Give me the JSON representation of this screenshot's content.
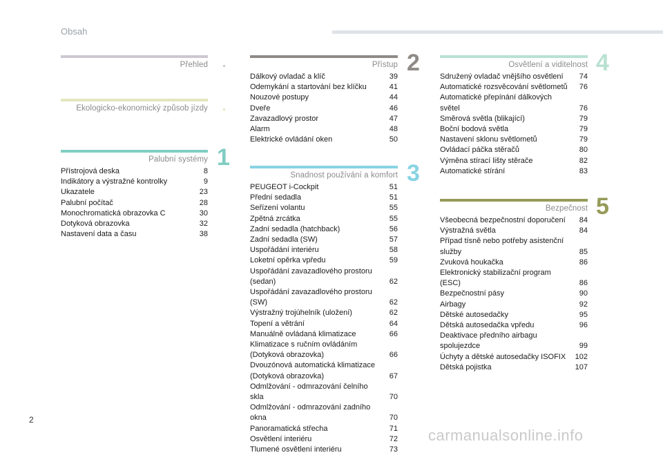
{
  "header": {
    "title": "Obsah"
  },
  "page_number": "2",
  "watermark": "carmanualsonline.info",
  "sections": {
    "prehled": {
      "title": "Přehled",
      "number": "",
      "color": "#cdc7d2",
      "entries": []
    },
    "eko": {
      "title": "Ekologicko-ekonomický způsob jízdy",
      "number": "",
      "color": "#e3e6bf",
      "entries": []
    },
    "palubni": {
      "title": "Palubní systémy",
      "number": "1",
      "color": "#7fcdc2",
      "entries": [
        {
          "t": "Přístrojová deska",
          "p": "8"
        },
        {
          "t": "Indikátory a výstražné kontrolky",
          "p": "9"
        },
        {
          "t": "Ukazatele",
          "p": "23"
        },
        {
          "t": "Palubní počítač",
          "p": "28"
        },
        {
          "t": "Monochromatická obrazovka C",
          "p": "30"
        },
        {
          "t": "Dotyková obrazovka",
          "p": "32"
        },
        {
          "t": "Nastavení data a času",
          "p": "38"
        }
      ]
    },
    "pristup": {
      "title": "Přístup",
      "number": "2",
      "color": "#8f8b87",
      "entries": [
        {
          "t": "Dálkový ovladač a klíč",
          "p": "39"
        },
        {
          "t": "Odemykání a startování bez klíčku",
          "p": "41"
        },
        {
          "t": "Nouzové postupy",
          "p": "44"
        },
        {
          "t": "Dveře",
          "p": "46"
        },
        {
          "t": "Zavazadlový prostor",
          "p": "47"
        },
        {
          "t": "Alarm",
          "p": "48"
        },
        {
          "t": "Elektrické ovládání oken",
          "p": "50"
        }
      ]
    },
    "snadnost": {
      "title": "Snadnost používání a komfort",
      "number": "3",
      "color": "#88d3e3",
      "entries": [
        {
          "t": "PEUGEOT i-Cockpit",
          "p": "51"
        },
        {
          "t": "Přední sedadla",
          "p": "51"
        },
        {
          "t": "Seřízení volantu",
          "p": "55"
        },
        {
          "t": "Zpětná zrcátka",
          "p": "55"
        },
        {
          "t": "Zadní sedadla (hatchback)",
          "p": "56"
        },
        {
          "t": "Zadní sedadla (SW)",
          "p": "57"
        },
        {
          "t": "Uspořádání interiéru",
          "p": "58"
        },
        {
          "t": "Loketní opěrka vpředu",
          "p": "59"
        },
        {
          "t": "Uspořádání zavazadlového prostoru (sedan)",
          "p": "62"
        },
        {
          "t": "Uspořádání zavazadlového prostoru (SW)",
          "p": "62"
        },
        {
          "t": "Výstražný trojúhelník (uložení)",
          "p": "62"
        },
        {
          "t": "Topení a větrání",
          "p": "64"
        },
        {
          "t": "Manuálně ovládaná klimatizace",
          "p": "66"
        },
        {
          "t": "Klimatizace s ručním ovládáním\n(Dotyková obrazovka)",
          "p": "66"
        },
        {
          "t": "Dvouzónová automatická klimatizace\n(Dotyková obrazovka)",
          "p": "67"
        },
        {
          "t": "Odmlžování - odmrazování čelního skla",
          "p": "70"
        },
        {
          "t": "Odmlžování - odmrazování zadního okna",
          "p": "70"
        },
        {
          "t": "Panoramatická střecha",
          "p": "71"
        },
        {
          "t": "Osvětlení interiéru",
          "p": "72"
        },
        {
          "t": "Tlumené osvětlení interiéru",
          "p": "73"
        }
      ]
    },
    "osvetleni": {
      "title": "Osvětlení a viditelnost",
      "number": "4",
      "color": "#b9e1d2",
      "entries": [
        {
          "t": "Sdružený ovladač vnějšího osvětlení",
          "p": "74"
        },
        {
          "t": "Automatické rozsvěcování světlometů",
          "p": "76"
        },
        {
          "t": "Automatické přepínání dálkových světel",
          "p": "76"
        },
        {
          "t": "Směrová světla (blikající)",
          "p": "79"
        },
        {
          "t": "Boční bodová světla",
          "p": "79"
        },
        {
          "t": "Nastavení sklonu světlometů",
          "p": "79"
        },
        {
          "t": "Ovládací páčka stěračů",
          "p": "80"
        },
        {
          "t": "Výměna stírací lišty stěrače",
          "p": "82"
        },
        {
          "t": "Automatické stírání",
          "p": "83"
        }
      ]
    },
    "bezpecnost": {
      "title": "Bezpečnost",
      "number": "5",
      "color": "#959a58",
      "entries": [
        {
          "t": "Všeobecná bezpečnostní doporučení",
          "p": "84"
        },
        {
          "t": "Výstražná světla",
          "p": "84"
        },
        {
          "t": "Případ tísně nebo potřeby asistenční služby",
          "p": "85"
        },
        {
          "t": "Zvuková houkačka",
          "p": "86"
        },
        {
          "t": "Elektronický stabilizační program (ESC)",
          "p": "86"
        },
        {
          "t": "Bezpečnostní pásy",
          "p": "90"
        },
        {
          "t": "Airbagy",
          "p": "92"
        },
        {
          "t": "Dětské autosedačky",
          "p": "95"
        },
        {
          "t": "Dětská autosedačka vpředu",
          "p": "96"
        },
        {
          "t": "Deaktivace předního airbagu spolujezdce",
          "p": "99"
        },
        {
          "t": "Úchyty a dětské autosedačky ISOFIX",
          "p": "102"
        },
        {
          "t": "Dětská pojistka",
          "p": "107"
        }
      ]
    }
  }
}
